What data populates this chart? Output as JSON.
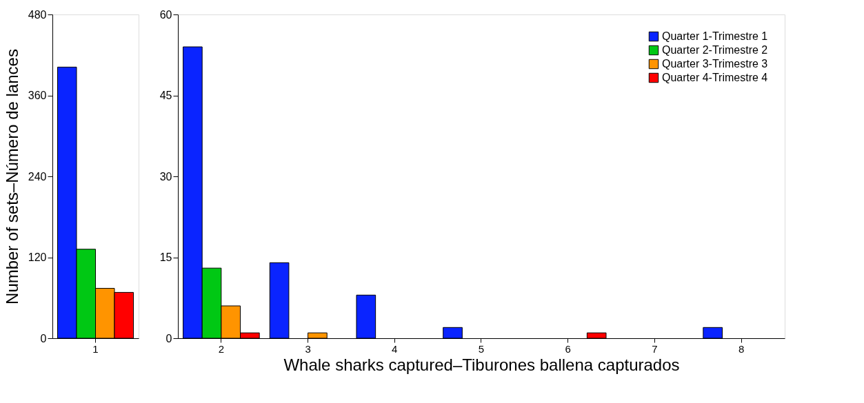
{
  "chart_data": [
    {
      "type": "bar",
      "ylabel": "Number of sets–Número de lances",
      "categories": [
        "1"
      ],
      "ylim": [
        0,
        480
      ],
      "yticks": [
        0,
        120,
        240,
        360,
        480
      ],
      "grid": false,
      "legend": false,
      "series": [
        {
          "color": "#0a24ff",
          "values": [
            402
          ]
        },
        {
          "color": "#00c814",
          "values": [
            132
          ]
        },
        {
          "color": "#ff9400",
          "values": [
            74
          ]
        },
        {
          "color": "#ff0000",
          "values": [
            68
          ]
        }
      ]
    },
    {
      "type": "bar",
      "xlabel": "Whale sharks captured–Tiburones ballena capturados",
      "categories": [
        "2",
        "3",
        "4",
        "5",
        "6",
        "7",
        "8"
      ],
      "ylim": [
        0,
        60
      ],
      "yticks": [
        0,
        15,
        30,
        45,
        60
      ],
      "grid": false,
      "legend": "top right",
      "series": [
        {
          "name": "Quarter 1-Trimestre 1",
          "color": "#0a24ff",
          "values": [
            54,
            14,
            8,
            2,
            null,
            null,
            2
          ]
        },
        {
          "name": "Quarter 2-Trimestre 2",
          "color": "#00c814",
          "values": [
            13,
            null,
            null,
            null,
            null,
            null,
            null
          ]
        },
        {
          "name": "Quarter 3-Trimestre 3",
          "color": "#ff9400",
          "values": [
            6,
            1,
            null,
            null,
            null,
            null,
            null
          ]
        },
        {
          "name": "Quarter 4-Trimestre 4",
          "color": "#ff0000",
          "values": [
            1,
            null,
            null,
            null,
            1,
            null,
            null
          ]
        }
      ]
    }
  ]
}
